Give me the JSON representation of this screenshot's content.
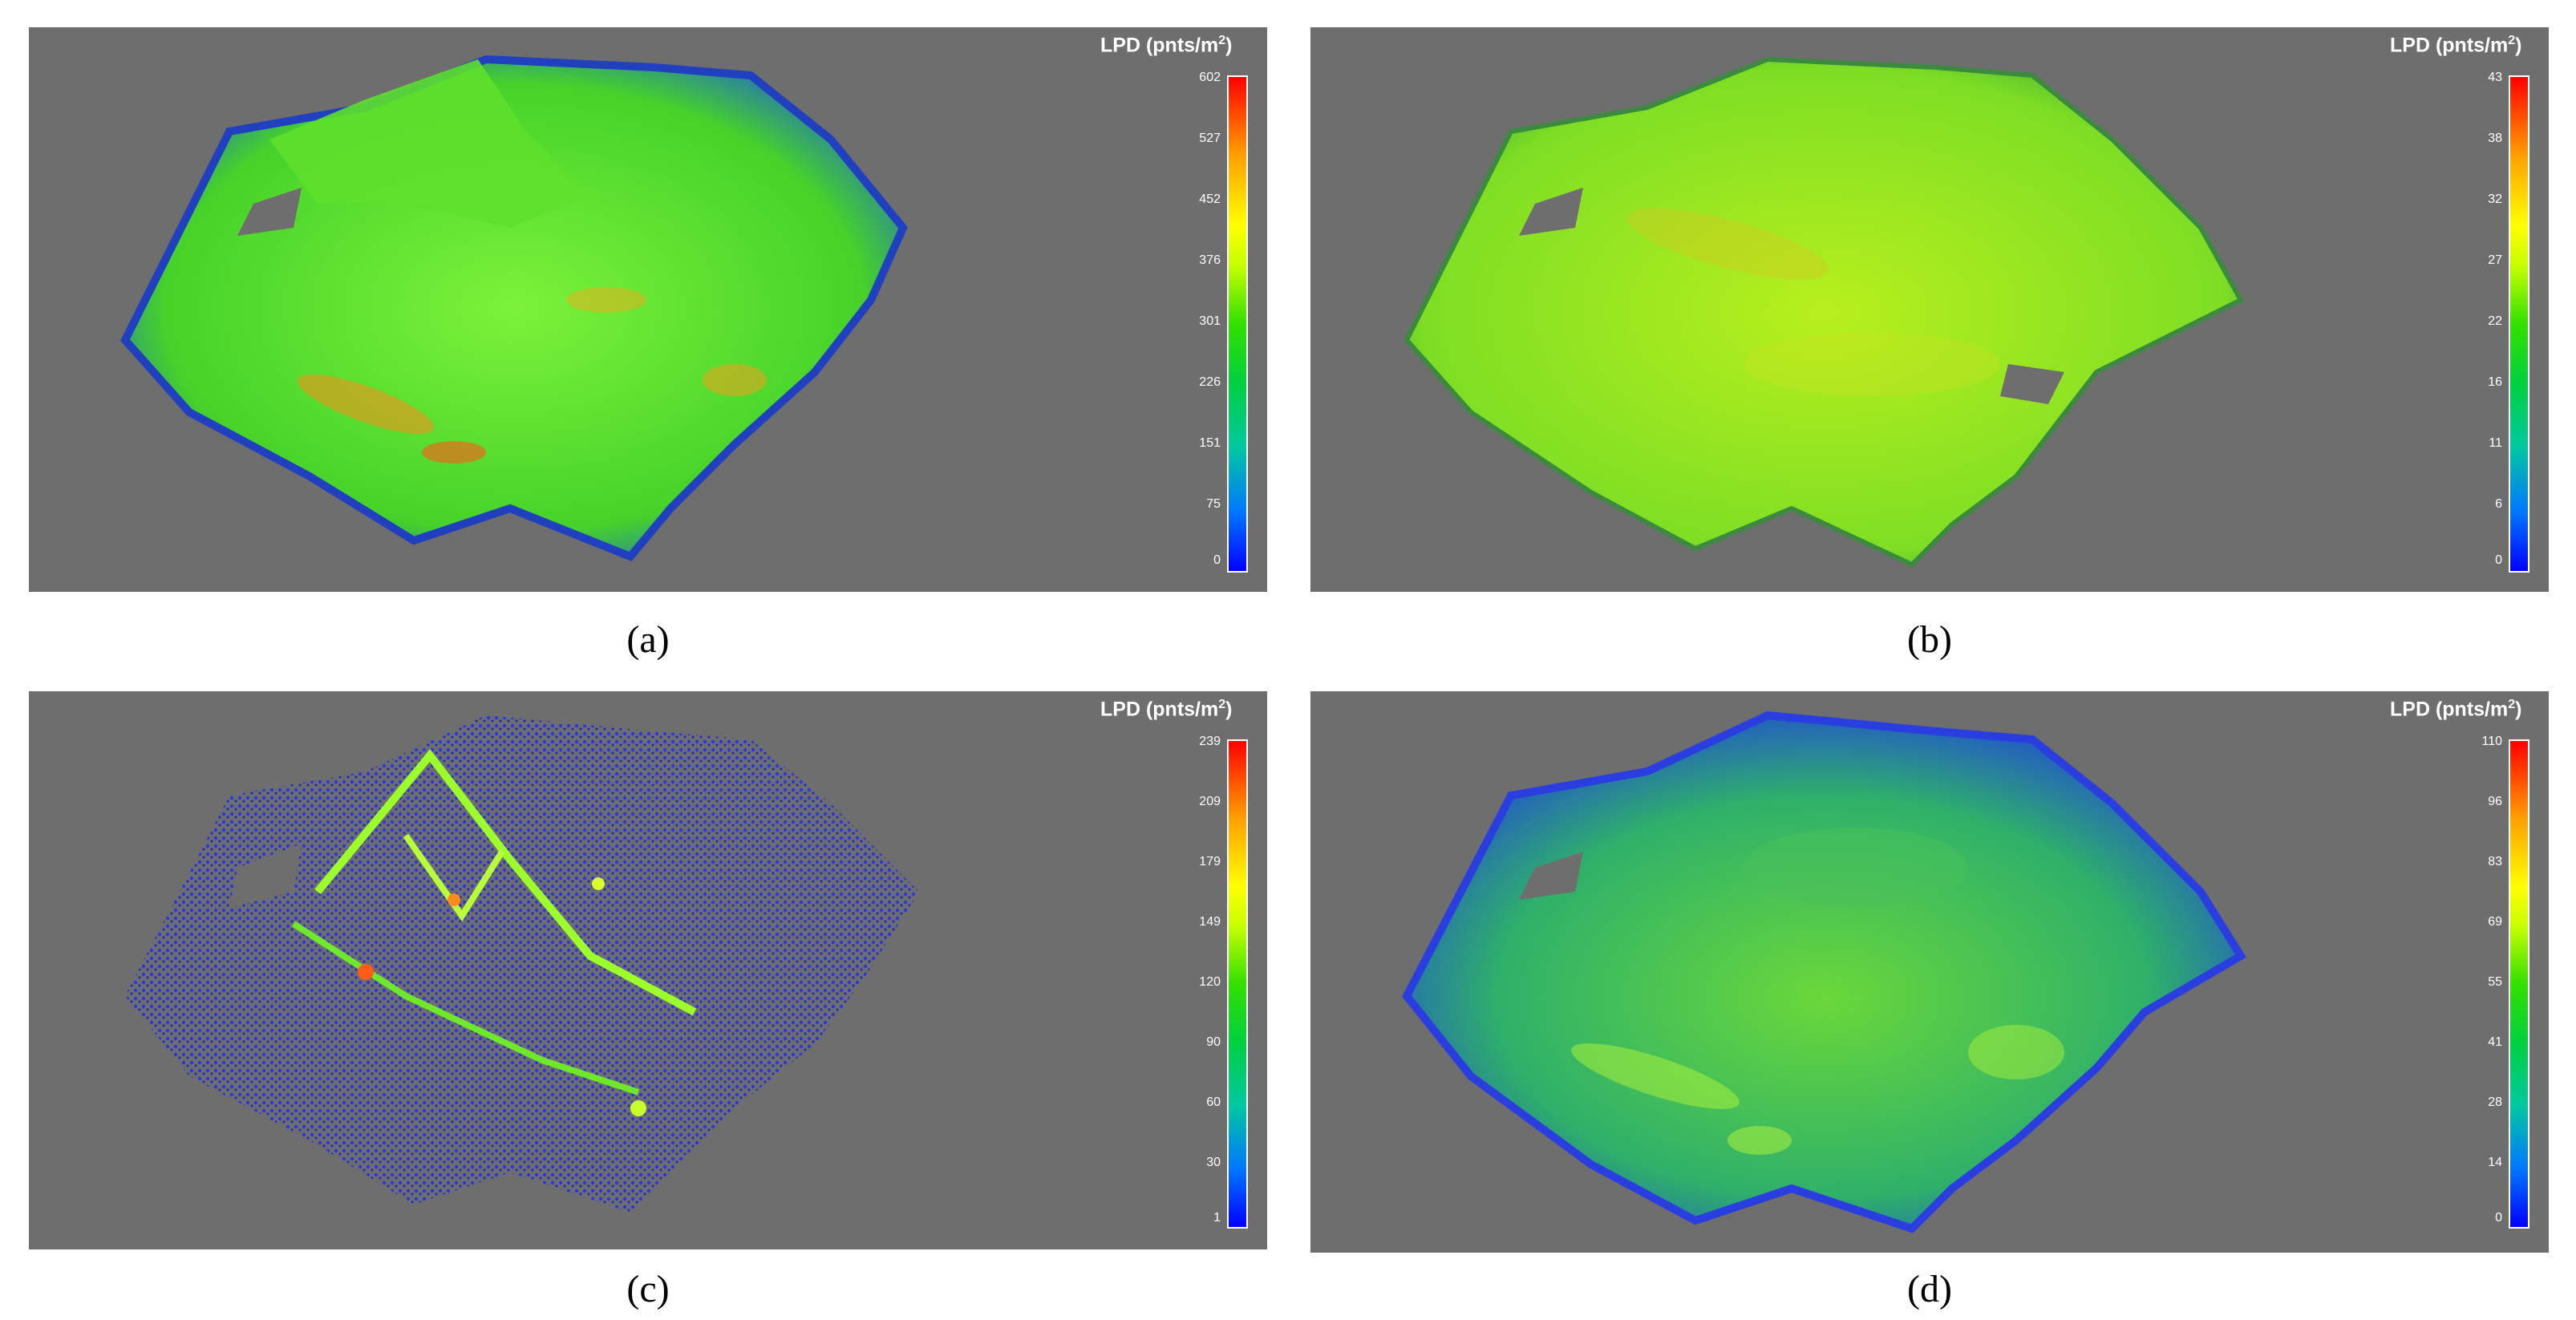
{
  "panels": [
    {
      "id": "a",
      "caption": "(a)",
      "legend_title": "LPD (pnts/m",
      "legend_sup": "2",
      "legend_title_close": ")",
      "ticks": [
        "602",
        "527",
        "452",
        "376",
        "301",
        "226",
        "151",
        "75",
        "0"
      ],
      "cloud_color": "#5fe02a",
      "cloud_style": "dense-green"
    },
    {
      "id": "b",
      "caption": "(b)",
      "legend_title": "LPD (pnts/m",
      "legend_sup": "2",
      "legend_title_close": ")",
      "ticks": [
        "43",
        "38",
        "32",
        "27",
        "22",
        "16",
        "11",
        "6",
        "0"
      ],
      "cloud_color": "#9ee61e",
      "cloud_style": "yellow-green"
    },
    {
      "id": "c",
      "caption": "(c)",
      "legend_title": "LPD (pnts/m",
      "legend_sup": "2",
      "legend_title_close": ")",
      "ticks": [
        "239",
        "209",
        "179",
        "149",
        "120",
        "90",
        "60",
        "30",
        "1"
      ],
      "cloud_color": "#1a2fd8",
      "cloud_style": "sparse-blue"
    },
    {
      "id": "d",
      "caption": "(d)",
      "legend_title": "LPD (pnts/m",
      "legend_sup": "2",
      "legend_title_close": ")",
      "ticks": [
        "110",
        "96",
        "83",
        "69",
        "55",
        "41",
        "28",
        "14",
        "0"
      ],
      "cloud_color": "#2fb06a",
      "cloud_style": "blue-green"
    }
  ],
  "colors": {
    "background": "#6e6e6e",
    "colorbar_low": "#0000ff",
    "colorbar_mid": "#33e000",
    "colorbar_high": "#ff0000"
  }
}
